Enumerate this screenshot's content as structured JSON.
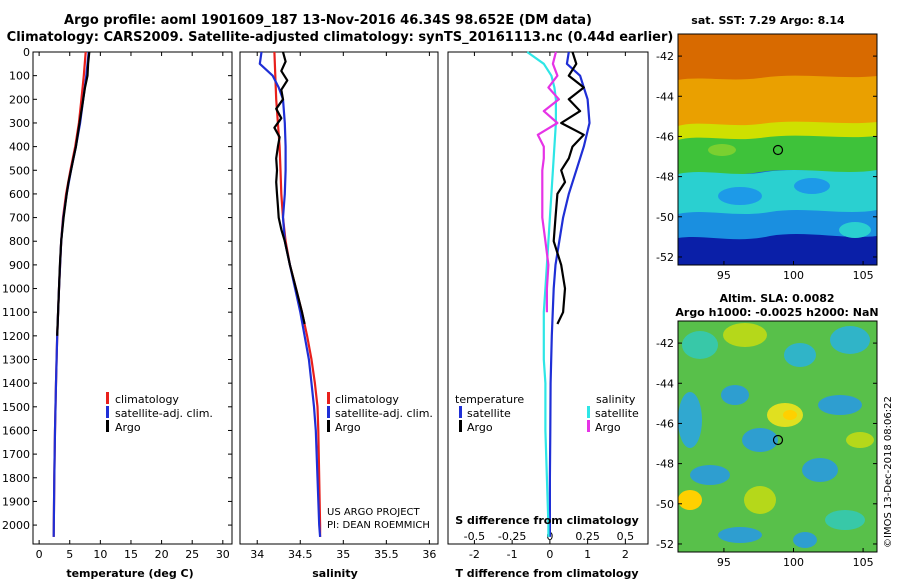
{
  "header": {
    "title_line1": "Argo profile: aoml 1901609_187 13-Nov-2016 46.34S 98.652E (DM data)",
    "title_line2": "Climatology: CARS2009. Satellite-adjusted climatology: synTS_20161113.nc (0.44d earlier)"
  },
  "colors": {
    "climatology": "#e8201c",
    "satellite_adj": "#1f2fd6",
    "argo": "#000000",
    "s_satellite": "#2ee6e6",
    "s_argo": "#e633e6"
  },
  "credits": {
    "line1": "US ARGO PROJECT",
    "line2": "PI: DEAN ROEMMICH",
    "imos": "©IMOS 13-Dec-2018 08:06:22"
  },
  "sst_map": {
    "title": "sat. SST: 7.29 Argo: 8.14",
    "y_ticks": [
      "-42",
      "-44",
      "-46",
      "-48",
      "-50",
      "-52"
    ],
    "x_ticks": [
      "95",
      "100",
      "105"
    ]
  },
  "sla_map": {
    "title_line1": "Altim. SLA: 0.0082",
    "title_line2": "Argo h1000: -0.0025 h2000: NaN",
    "y_ticks": [
      "-42",
      "-44",
      "-46",
      "-48",
      "-50",
      "-52"
    ],
    "x_ticks": [
      "95",
      "100",
      "105"
    ]
  },
  "chart_data": [
    {
      "type": "line",
      "id": "temperature",
      "xlabel": "temperature (deg C)",
      "ylabel": "",
      "xlim": [
        -1,
        31.5
      ],
      "ylim": [
        2080,
        0
      ],
      "x_ticks": [
        0,
        5,
        10,
        15,
        20,
        25,
        30
      ],
      "y_ticks": [
        0,
        100,
        200,
        300,
        400,
        500,
        600,
        700,
        800,
        900,
        1000,
        1100,
        1200,
        1300,
        1400,
        1500,
        1600,
        1700,
        1800,
        1900,
        2000
      ],
      "legend": [
        "climatology",
        "satellite-adj. clim.",
        "Argo"
      ],
      "legend_position": "lower-right",
      "series": [
        {
          "name": "climatology",
          "pressure": [
            0,
            100,
            200,
            300,
            400,
            500,
            600,
            700,
            800,
            1000,
            1200,
            1400,
            1600,
            1800,
            2000,
            2050
          ],
          "values": [
            7.6,
            7.3,
            6.9,
            6.5,
            5.9,
            5.1,
            4.4,
            3.9,
            3.6,
            3.25,
            2.95,
            2.75,
            2.6,
            2.48,
            2.4,
            2.38
          ]
        },
        {
          "name": "satellite-adj. clim.",
          "pressure": [
            0,
            100,
            200,
            300,
            400,
            500,
            600,
            700,
            800,
            1000,
            1200,
            1400,
            1600,
            1800,
            2000,
            2050
          ],
          "values": [
            8.1,
            7.7,
            7.2,
            6.7,
            6.0,
            5.2,
            4.5,
            3.95,
            3.6,
            3.25,
            2.95,
            2.75,
            2.6,
            2.48,
            2.4,
            2.38
          ]
        },
        {
          "name": "Argo",
          "pressure": [
            0,
            50,
            100,
            150,
            200,
            250,
            300,
            350,
            400,
            450,
            500,
            550,
            600,
            700,
            800,
            900,
            1000,
            1100,
            1200
          ],
          "values": [
            8.2,
            8.0,
            7.9,
            7.5,
            7.2,
            6.9,
            6.6,
            6.3,
            6.0,
            5.6,
            5.2,
            4.8,
            4.5,
            4.0,
            3.6,
            3.4,
            3.25,
            3.1,
            2.95
          ]
        }
      ]
    },
    {
      "type": "line",
      "id": "salinity",
      "xlabel": "salinity",
      "ylabel": "",
      "xlim": [
        33.8,
        36.1
      ],
      "ylim": [
        2080,
        0
      ],
      "x_ticks": [
        34,
        34.5,
        35,
        35.5,
        36
      ],
      "x_tick_labels": [
        "34",
        "34.5",
        "35",
        "35.5",
        "36"
      ],
      "legend": [
        "climatology",
        "satellite-adj. clim.",
        "Argo"
      ],
      "legend_position": "lower-right",
      "series": [
        {
          "name": "climatology",
          "pressure": [
            0,
            100,
            200,
            300,
            400,
            500,
            600,
            700,
            800,
            900,
            1000,
            1100,
            1200,
            1300,
            1400,
            1500,
            1600,
            1800,
            2000,
            2050
          ],
          "values": [
            34.2,
            34.21,
            34.22,
            34.24,
            34.26,
            34.27,
            34.28,
            34.3,
            34.33,
            34.38,
            34.45,
            34.52,
            34.58,
            34.63,
            34.67,
            34.7,
            34.71,
            34.72,
            34.73,
            34.73
          ]
        },
        {
          "name": "satellite-adj. clim.",
          "pressure": [
            0,
            50,
            100,
            150,
            200,
            300,
            400,
            500,
            600,
            700,
            800,
            900,
            1000,
            1100,
            1200,
            1300,
            1400,
            1500,
            1600,
            1800,
            2000,
            2050
          ],
          "values": [
            34.05,
            34.03,
            34.18,
            34.25,
            34.3,
            34.32,
            34.33,
            34.33,
            34.32,
            34.3,
            34.32,
            34.38,
            34.44,
            34.5,
            34.55,
            34.6,
            34.63,
            34.66,
            34.68,
            34.7,
            34.72,
            34.73
          ]
        },
        {
          "name": "Argo",
          "pressure": [
            0,
            40,
            80,
            120,
            160,
            200,
            240,
            280,
            320,
            360,
            400,
            450,
            500,
            550,
            600,
            650,
            700,
            750,
            800,
            900,
            1000,
            1100,
            1150
          ],
          "values": [
            34.3,
            34.33,
            34.28,
            34.35,
            34.28,
            34.3,
            34.22,
            34.28,
            34.2,
            34.26,
            34.24,
            34.22,
            34.23,
            34.22,
            34.23,
            34.24,
            34.25,
            34.28,
            34.32,
            34.38,
            34.45,
            34.52,
            34.55
          ]
        }
      ]
    },
    {
      "type": "line",
      "id": "difference",
      "xlabel": "T difference from climatology",
      "title": "S difference from climatology",
      "ylabel": "",
      "xlim": [
        -2.7,
        2.6
      ],
      "ylim": [
        2080,
        0
      ],
      "x_ticks": [
        -2,
        -1,
        0,
        1,
        2
      ],
      "s_ticks": [
        "-0.5",
        "-0.25",
        "0",
        "0.25",
        "0.5"
      ],
      "legend_temperature_title": "temperature",
      "legend_salinity_title": "salinity",
      "legend_temperature": [
        "satellite",
        "Argo"
      ],
      "legend_salinity": [
        "satellite",
        "Argo"
      ],
      "legend_position": "lower-center",
      "series": [
        {
          "name": "temperature satellite",
          "pressure": [
            0,
            50,
            100,
            150,
            200,
            300,
            400,
            500,
            600,
            700,
            800,
            900,
            1000,
            1200,
            1400,
            1600,
            1800,
            2000,
            2050
          ],
          "values": [
            0.5,
            0.45,
            0.8,
            0.9,
            1.0,
            1.05,
            0.9,
            0.7,
            0.5,
            0.35,
            0.25,
            0.15,
            0.1,
            0.05,
            0.02,
            0.01,
            0.0,
            0.0,
            0.0
          ]
        },
        {
          "name": "temperature Argo",
          "pressure": [
            0,
            50,
            100,
            150,
            200,
            250,
            300,
            350,
            400,
            450,
            500,
            550,
            600,
            700,
            800,
            900,
            1000,
            1100,
            1150
          ],
          "values": [
            0.6,
            0.7,
            0.5,
            0.9,
            0.5,
            0.8,
            0.3,
            0.9,
            0.6,
            0.5,
            0.3,
            0.4,
            0.2,
            0.15,
            0.1,
            0.3,
            0.4,
            0.35,
            0.2
          ]
        },
        {
          "name": "salinity satellite",
          "pressure": [
            0,
            50,
            100,
            150,
            200,
            300,
            400,
            500,
            600,
            700,
            800,
            900,
            1000,
            1100,
            1200,
            1300,
            1400,
            1500,
            1600,
            1800,
            2000,
            2050
          ],
          "values": [
            -0.15,
            -0.04,
            0.01,
            0.03,
            0.04,
            0.04,
            0.03,
            0.02,
            0.01,
            0.0,
            -0.01,
            -0.02,
            -0.03,
            -0.04,
            -0.04,
            -0.04,
            -0.03,
            -0.03,
            -0.03,
            -0.02,
            -0.01,
            -0.01
          ]
        },
        {
          "name": "salinity Argo",
          "pressure": [
            0,
            50,
            100,
            150,
            200,
            250,
            300,
            350,
            400,
            450,
            500,
            550,
            600,
            700,
            800,
            900,
            1000,
            1100
          ],
          "values": [
            0.04,
            0.02,
            0.05,
            -0.01,
            0.06,
            -0.04,
            0.05,
            -0.08,
            -0.04,
            -0.04,
            -0.05,
            -0.05,
            -0.05,
            -0.05,
            -0.03,
            -0.01,
            -0.02,
            -0.02
          ]
        }
      ]
    }
  ]
}
